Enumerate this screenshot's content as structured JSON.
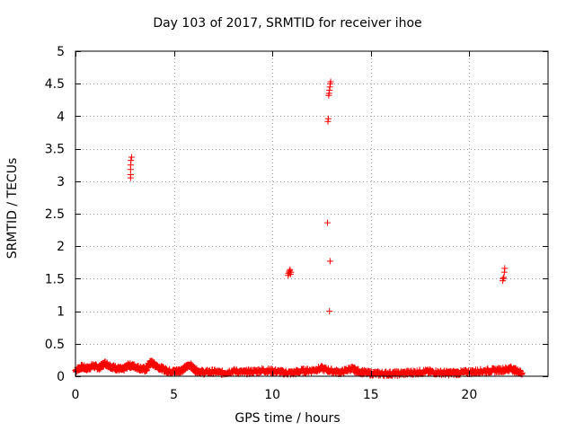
{
  "chart_data": {
    "type": "scatter",
    "title": "Day 103 of 2017, SRMTID for receiver ihoe",
    "xlabel": "GPS time / hours",
    "ylabel": "SRMTID / TECUs",
    "xlim": [
      0,
      24
    ],
    "ylim": [
      0,
      5
    ],
    "xticks": [
      0,
      5,
      10,
      15,
      20
    ],
    "yticks": [
      0,
      0.5,
      1,
      1.5,
      2,
      2.5,
      3,
      3.5,
      4,
      4.5,
      5
    ],
    "grid": true,
    "marker": "+",
    "color": "#ff0000",
    "series": [
      {
        "name": "SRMTID",
        "points": [
          [
            2.8,
            3.05
          ],
          [
            2.8,
            3.1
          ],
          [
            2.8,
            3.18
          ],
          [
            2.8,
            3.25
          ],
          [
            2.82,
            3.32
          ],
          [
            2.85,
            3.37
          ],
          [
            10.8,
            1.55
          ],
          [
            10.82,
            1.58
          ],
          [
            10.85,
            1.6
          ],
          [
            10.87,
            1.62
          ],
          [
            10.9,
            1.64
          ],
          [
            10.92,
            1.57
          ],
          [
            10.95,
            1.6
          ],
          [
            12.8,
            2.36
          ],
          [
            12.82,
            3.92
          ],
          [
            12.84,
            3.96
          ],
          [
            12.86,
            4.32
          ],
          [
            12.88,
            4.35
          ],
          [
            12.9,
            4.4
          ],
          [
            12.92,
            4.45
          ],
          [
            12.94,
            4.5
          ],
          [
            12.96,
            4.53
          ],
          [
            12.93,
            1.77
          ],
          [
            12.9,
            1.0
          ],
          [
            21.7,
            1.47
          ],
          [
            21.72,
            1.5
          ],
          [
            21.75,
            1.52
          ],
          [
            21.78,
            1.6
          ],
          [
            21.8,
            1.66
          ]
        ],
        "baseline": [
          [
            0.0,
            0.09
          ],
          [
            0.3,
            0.14
          ],
          [
            0.6,
            0.12
          ],
          [
            0.9,
            0.16
          ],
          [
            1.2,
            0.13
          ],
          [
            1.5,
            0.2
          ],
          [
            1.8,
            0.15
          ],
          [
            2.1,
            0.12
          ],
          [
            2.4,
            0.1
          ],
          [
            2.7,
            0.17
          ],
          [
            3.0,
            0.15
          ],
          [
            3.3,
            0.12
          ],
          [
            3.6,
            0.1
          ],
          [
            3.8,
            0.22
          ],
          [
            4.0,
            0.18
          ],
          [
            4.3,
            0.13
          ],
          [
            4.6,
            0.09
          ],
          [
            4.9,
            0.07
          ],
          [
            5.2,
            0.08
          ],
          [
            5.5,
            0.11
          ],
          [
            5.8,
            0.18
          ],
          [
            6.1,
            0.09
          ],
          [
            6.5,
            0.06
          ],
          [
            7.0,
            0.07
          ],
          [
            7.5,
            0.05
          ],
          [
            8.0,
            0.08
          ],
          [
            8.5,
            0.06
          ],
          [
            9.0,
            0.07
          ],
          [
            9.5,
            0.09
          ],
          [
            10.0,
            0.08
          ],
          [
            10.5,
            0.06
          ],
          [
            11.0,
            0.05
          ],
          [
            11.5,
            0.08
          ],
          [
            12.0,
            0.09
          ],
          [
            12.5,
            0.12
          ],
          [
            13.0,
            0.08
          ],
          [
            13.5,
            0.06
          ],
          [
            14.0,
            0.12
          ],
          [
            14.3,
            0.08
          ],
          [
            14.8,
            0.05
          ],
          [
            15.3,
            0.04
          ],
          [
            15.8,
            0.04
          ],
          [
            16.3,
            0.04
          ],
          [
            16.8,
            0.05
          ],
          [
            17.3,
            0.06
          ],
          [
            17.8,
            0.07
          ],
          [
            18.3,
            0.06
          ],
          [
            18.8,
            0.05
          ],
          [
            19.3,
            0.05
          ],
          [
            19.8,
            0.06
          ],
          [
            20.3,
            0.07
          ],
          [
            20.8,
            0.08
          ],
          [
            21.3,
            0.09
          ],
          [
            21.8,
            0.1
          ],
          [
            22.1,
            0.12
          ],
          [
            22.4,
            0.08
          ],
          [
            22.7,
            0.05
          ]
        ]
      }
    ]
  }
}
